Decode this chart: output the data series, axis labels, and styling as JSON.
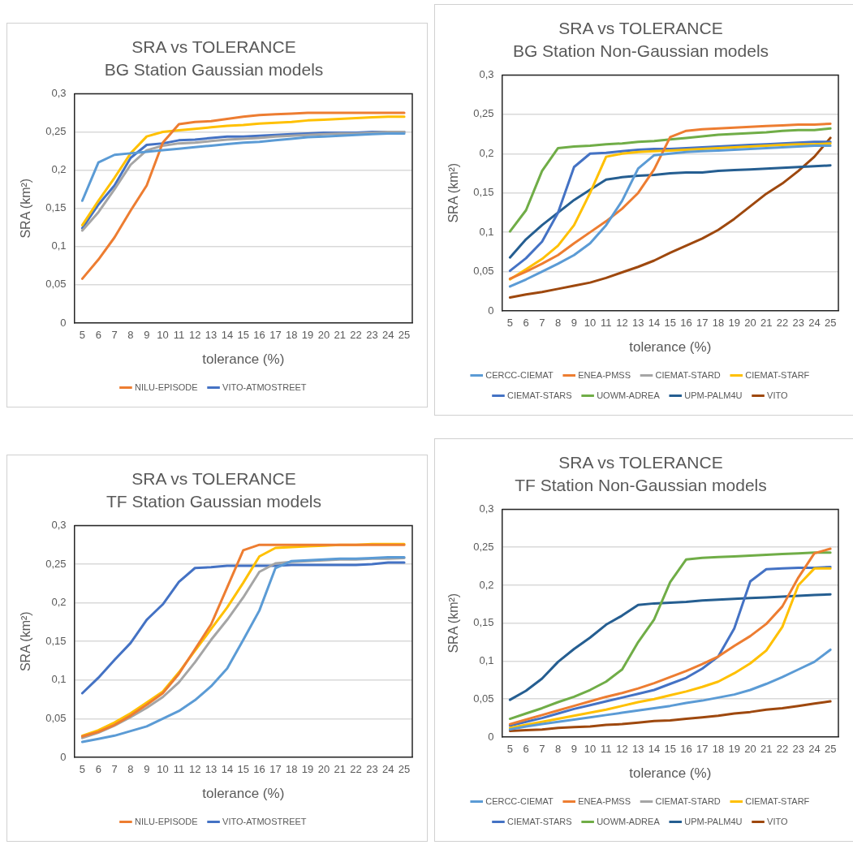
{
  "chart_data": [
    {
      "type": "line",
      "title": "SRA vs TOLERANCE",
      "subtitle": "BG Station Gaussian models",
      "xlabel": "tolerance (%)",
      "ylabel": "SRA (km²)",
      "categories": [
        "5",
        "6",
        "7",
        "8",
        "9",
        "10",
        "11",
        "12",
        "13",
        "14",
        "15",
        "16",
        "17",
        "18",
        "19",
        "20",
        "21",
        "22",
        "23",
        "24",
        "25"
      ],
      "ylim": [
        0,
        0.3
      ],
      "yticks": [
        {
          "value": 0,
          "label": "0"
        },
        {
          "value": 0.05,
          "label": "0,05"
        },
        {
          "value": 0.1,
          "label": "0,1"
        },
        {
          "value": 0.15,
          "label": "0,15"
        },
        {
          "value": 0.2,
          "label": "0,2"
        },
        {
          "value": 0.25,
          "label": "0,25"
        },
        {
          "value": 0.3,
          "label": "0,3"
        }
      ],
      "grid": "y",
      "legend": "bottom",
      "marker": "none",
      "series": [
        {
          "color": "#5b9bd5",
          "values": [
            0.16,
            0.21,
            0.22,
            0.222,
            0.224,
            0.226,
            0.228,
            0.23,
            0.232,
            0.234,
            0.236,
            0.237,
            0.239,
            0.241,
            0.243,
            0.244,
            0.245,
            0.246,
            0.247,
            0.248,
            0.248
          ]
        },
        {
          "name": "NILU-EPISODE",
          "color": "#ed7d31",
          "values": [
            0.058,
            0.083,
            0.112,
            0.147,
            0.18,
            0.236,
            0.26,
            0.263,
            0.264,
            0.267,
            0.27,
            0.272,
            0.273,
            0.274,
            0.275,
            0.275,
            0.275,
            0.275,
            0.275,
            0.275,
            0.275
          ]
        },
        {
          "color": "#a5a5a5",
          "values": [
            0.121,
            0.145,
            0.175,
            0.207,
            0.226,
            0.232,
            0.235,
            0.236,
            0.238,
            0.24,
            0.241,
            0.242,
            0.244,
            0.245,
            0.246,
            0.247,
            0.248,
            0.248,
            0.249,
            0.25,
            0.25
          ]
        },
        {
          "color": "#ffc000",
          "values": [
            0.128,
            0.16,
            0.19,
            0.222,
            0.244,
            0.25,
            0.252,
            0.254,
            0.256,
            0.258,
            0.259,
            0.261,
            0.262,
            0.263,
            0.265,
            0.266,
            0.267,
            0.268,
            0.269,
            0.27,
            0.27
          ]
        },
        {
          "name": "VITO-ATMOSTREET",
          "color": "#4472c4",
          "values": [
            0.124,
            0.155,
            0.18,
            0.216,
            0.233,
            0.235,
            0.239,
            0.24,
            0.242,
            0.244,
            0.244,
            0.245,
            0.246,
            0.247,
            0.248,
            0.249,
            0.249,
            0.249,
            0.25,
            0.25,
            0.25
          ]
        }
      ]
    },
    {
      "type": "line",
      "title": "SRA vs TOLERANCE",
      "subtitle": "BG Station Non-Gaussian models",
      "xlabel": "tolerance (%)",
      "ylabel": "SRA (km²)",
      "categories": [
        "5",
        "6",
        "7",
        "8",
        "9",
        "10",
        "11",
        "12",
        "13",
        "14",
        "15",
        "16",
        "17",
        "18",
        "19",
        "20",
        "21",
        "22",
        "23",
        "24",
        "25"
      ],
      "ylim": [
        0,
        0.3
      ],
      "yticks": [
        {
          "value": 0,
          "label": "0"
        },
        {
          "value": 0.05,
          "label": "0,05"
        },
        {
          "value": 0.1,
          "label": "0,1"
        },
        {
          "value": 0.15,
          "label": "0,15"
        },
        {
          "value": 0.2,
          "label": "0,2"
        },
        {
          "value": 0.25,
          "label": "0,25"
        },
        {
          "value": 0.3,
          "label": "0,3"
        }
      ],
      "grid": "y",
      "legend": "bottom",
      "marker": "none",
      "series": [
        {
          "name": "CERCC-CIEMAT",
          "color": "#5b9bd5",
          "values": [
            0.031,
            0.04,
            0.05,
            0.06,
            0.071,
            0.086,
            0.109,
            0.14,
            0.181,
            0.198,
            0.2,
            0.202,
            0.203,
            0.204,
            0.205,
            0.206,
            0.207,
            0.208,
            0.209,
            0.21,
            0.21
          ]
        },
        {
          "name": "ENEA-PMSS",
          "color": "#ed7d31",
          "values": [
            0.041,
            0.05,
            0.06,
            0.071,
            0.086,
            0.1,
            0.114,
            0.13,
            0.15,
            0.18,
            0.221,
            0.229,
            0.231,
            0.232,
            0.233,
            0.234,
            0.235,
            0.236,
            0.237,
            0.237,
            0.238
          ]
        },
        {
          "name": "CIEMAT-STARD",
          "color": "#a5a5a5",
          "values": [
            null,
            null,
            null,
            null,
            null,
            null,
            null,
            null,
            null,
            null,
            null,
            null,
            null,
            null,
            null,
            null,
            null,
            null,
            null,
            null,
            null
          ]
        },
        {
          "name": "CIEMAT-STARF",
          "color": "#ffc000",
          "values": [
            0.04,
            0.053,
            0.066,
            0.083,
            0.109,
            0.15,
            0.196,
            0.2,
            0.202,
            0.203,
            0.204,
            0.205,
            0.206,
            0.207,
            0.208,
            0.209,
            0.21,
            0.211,
            0.212,
            0.212,
            0.213
          ]
        },
        {
          "name": "CIEMAT-STARS",
          "color": "#4472c4",
          "values": [
            0.051,
            0.067,
            0.088,
            0.125,
            0.183,
            0.2,
            0.201,
            0.203,
            0.205,
            0.206,
            0.206,
            0.207,
            0.208,
            0.209,
            0.21,
            0.211,
            0.212,
            0.213,
            0.214,
            0.215,
            0.215
          ]
        },
        {
          "name": "UOWM-ADREA",
          "color": "#70ad47",
          "values": [
            0.101,
            0.128,
            0.178,
            0.207,
            0.209,
            0.21,
            0.212,
            0.213,
            0.215,
            0.216,
            0.218,
            0.22,
            0.222,
            0.224,
            0.225,
            0.226,
            0.227,
            0.229,
            0.23,
            0.23,
            0.232
          ]
        },
        {
          "name": "UPM-PALM4U",
          "color": "#255e91",
          "values": [
            0.068,
            0.091,
            0.109,
            0.125,
            0.141,
            0.154,
            0.167,
            0.17,
            0.172,
            0.173,
            0.175,
            0.176,
            0.176,
            0.178,
            0.179,
            0.18,
            0.181,
            0.182,
            0.183,
            0.184,
            0.185
          ]
        },
        {
          "name": "VITO",
          "color": "#9e480e",
          "values": [
            0.017,
            0.021,
            0.024,
            0.028,
            0.032,
            0.036,
            0.042,
            0.049,
            0.056,
            0.064,
            0.074,
            0.083,
            0.092,
            0.103,
            0.117,
            0.133,
            0.149,
            0.162,
            0.178,
            0.196,
            0.22
          ]
        }
      ]
    },
    {
      "type": "line",
      "title": "SRA vs TOLERANCE",
      "subtitle": "TF Station Gaussian models",
      "xlabel": "tolerance (%)",
      "ylabel": "SRA (km²)",
      "categories": [
        "5",
        "6",
        "7",
        "8",
        "9",
        "10",
        "11",
        "12",
        "13",
        "14",
        "15",
        "16",
        "17",
        "18",
        "19",
        "20",
        "21",
        "22",
        "23",
        "24",
        "25"
      ],
      "ylim": [
        0,
        0.3
      ],
      "yticks": [
        {
          "value": 0,
          "label": "0"
        },
        {
          "value": 0.05,
          "label": "0,05"
        },
        {
          "value": 0.1,
          "label": "0,1"
        },
        {
          "value": 0.15,
          "label": "0,15"
        },
        {
          "value": 0.2,
          "label": "0,2"
        },
        {
          "value": 0.25,
          "label": "0,25"
        },
        {
          "value": 0.3,
          "label": "0,3"
        }
      ],
      "grid": "y",
      "legend": "bottom",
      "marker": "none",
      "series": [
        {
          "color": "#5b9bd5",
          "values": [
            0.02,
            0.024,
            0.028,
            0.034,
            0.04,
            0.05,
            0.06,
            0.074,
            0.092,
            0.115,
            0.152,
            0.19,
            0.245,
            0.254,
            0.255,
            0.256,
            0.257,
            0.257,
            0.258,
            0.259,
            0.259
          ]
        },
        {
          "name": "NILU-EPISODE",
          "color": "#ed7d31",
          "values": [
            0.027,
            0.033,
            0.042,
            0.054,
            0.068,
            0.083,
            0.108,
            0.14,
            0.172,
            0.22,
            0.268,
            0.275,
            0.275,
            0.275,
            0.275,
            0.275,
            0.275,
            0.275,
            0.275,
            0.275,
            0.275
          ]
        },
        {
          "color": "#a5a5a5",
          "values": [
            0.025,
            0.032,
            0.041,
            0.052,
            0.064,
            0.078,
            0.097,
            0.123,
            0.152,
            0.178,
            0.207,
            0.24,
            0.251,
            0.253,
            0.254,
            0.255,
            0.256,
            0.256,
            0.257,
            0.257,
            0.258
          ]
        },
        {
          "color": "#ffc000",
          "values": [
            0.028,
            0.035,
            0.045,
            0.057,
            0.071,
            0.085,
            0.11,
            0.138,
            0.166,
            0.194,
            0.226,
            0.26,
            0.271,
            0.272,
            0.273,
            0.274,
            0.275,
            0.275,
            0.276,
            0.276,
            0.276
          ]
        },
        {
          "name": "VITO-ATMOSTREET",
          "color": "#4472c4",
          "values": [
            0.083,
            0.103,
            0.126,
            0.148,
            0.178,
            0.198,
            0.227,
            0.245,
            0.246,
            0.248,
            0.248,
            0.248,
            0.248,
            0.249,
            0.249,
            0.249,
            0.249,
            0.249,
            0.25,
            0.252,
            0.252
          ]
        }
      ]
    },
    {
      "type": "line",
      "title": "SRA vs TOLERANCE",
      "subtitle": "TF Station Non-Gaussian models",
      "xlabel": "tolerance (%)",
      "ylabel": "SRA (km²)",
      "categories": [
        "5",
        "6",
        "7",
        "8",
        "9",
        "10",
        "11",
        "12",
        "13",
        "14",
        "15",
        "16",
        "17",
        "18",
        "19",
        "20",
        "21",
        "22",
        "23",
        "24",
        "25"
      ],
      "ylim": [
        0,
        0.3
      ],
      "yticks": [
        {
          "value": 0,
          "label": "0"
        },
        {
          "value": 0.05,
          "label": "0,05"
        },
        {
          "value": 0.1,
          "label": "0,1"
        },
        {
          "value": 0.15,
          "label": "0,15"
        },
        {
          "value": 0.2,
          "label": "0,2"
        },
        {
          "value": 0.25,
          "label": "0,25"
        },
        {
          "value": 0.3,
          "label": "0,3"
        }
      ],
      "grid": "y",
      "legend": "bottom",
      "marker": "none",
      "series": [
        {
          "name": "CERCC-CIEMAT",
          "color": "#5b9bd5",
          "values": [
            0.01,
            0.014,
            0.017,
            0.02,
            0.023,
            0.026,
            0.029,
            0.032,
            0.035,
            0.038,
            0.041,
            0.045,
            0.048,
            0.052,
            0.056,
            0.062,
            0.07,
            0.079,
            0.089,
            0.099,
            0.115
          ]
        },
        {
          "name": "ENEA-PMSS",
          "color": "#ed7d31",
          "values": [
            0.017,
            0.023,
            0.029,
            0.035,
            0.041,
            0.047,
            0.053,
            0.058,
            0.064,
            0.071,
            0.079,
            0.087,
            0.096,
            0.106,
            0.12,
            0.133,
            0.149,
            0.172,
            0.21,
            0.242,
            0.248
          ]
        },
        {
          "name": "CIEMAT-STARD",
          "color": "#a5a5a5",
          "values": [
            null,
            null,
            null,
            null,
            null,
            null,
            null,
            null,
            null,
            null,
            null,
            null,
            null,
            null,
            null,
            null,
            null,
            null,
            null,
            null,
            null
          ]
        },
        {
          "name": "CIEMAT-STARF",
          "color": "#ffc000",
          "values": [
            0.012,
            0.016,
            0.02,
            0.024,
            0.028,
            0.032,
            0.036,
            0.041,
            0.046,
            0.05,
            0.055,
            0.06,
            0.066,
            0.073,
            0.084,
            0.097,
            0.114,
            0.145,
            0.2,
            0.222,
            0.222
          ]
        },
        {
          "name": "CIEMAT-STARS",
          "color": "#4472c4",
          "values": [
            0.015,
            0.02,
            0.025,
            0.031,
            0.037,
            0.042,
            0.047,
            0.052,
            0.057,
            0.062,
            0.07,
            0.078,
            0.09,
            0.106,
            0.143,
            0.205,
            0.221,
            0.222,
            0.223,
            0.223,
            0.224
          ]
        },
        {
          "name": "UOWM-ADREA",
          "color": "#70ad47",
          "values": [
            0.024,
            0.031,
            0.038,
            0.046,
            0.053,
            0.062,
            0.073,
            0.089,
            0.125,
            0.155,
            0.204,
            0.234,
            0.236,
            0.237,
            0.238,
            0.239,
            0.24,
            0.241,
            0.242,
            0.243,
            0.243
          ]
        },
        {
          "name": "UPM-PALM4U",
          "color": "#255e91",
          "values": [
            0.049,
            0.061,
            0.077,
            0.099,
            0.116,
            0.131,
            0.148,
            0.16,
            0.174,
            0.176,
            0.177,
            0.178,
            0.18,
            0.181,
            0.182,
            0.183,
            0.184,
            0.185,
            0.186,
            0.187,
            0.188
          ]
        },
        {
          "name": "VITO",
          "color": "#9e480e",
          "values": [
            0.008,
            0.009,
            0.01,
            0.012,
            0.013,
            0.014,
            0.016,
            0.017,
            0.019,
            0.021,
            0.022,
            0.024,
            0.026,
            0.028,
            0.031,
            0.033,
            0.036,
            0.038,
            0.041,
            0.044,
            0.047
          ]
        }
      ]
    }
  ]
}
